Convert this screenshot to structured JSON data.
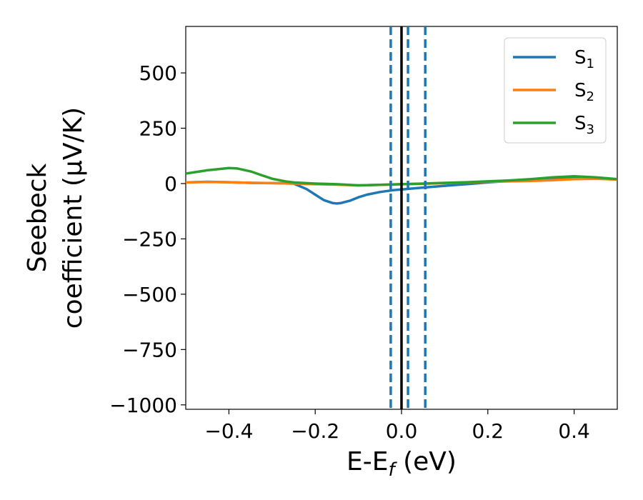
{
  "chart_data": {
    "type": "line",
    "xlabel_main": "E-E",
    "xlabel_sub": "f",
    "xlabel_unit": " (eV)",
    "ylabel_line1": "Seebeck",
    "ylabel_line2": "coefficient  (μV/K)",
    "xlim": [
      -0.5,
      0.5
    ],
    "ylim": [
      -1020,
      710
    ],
    "xticks": [
      -0.4,
      -0.2,
      0.0,
      0.2,
      0.4
    ],
    "xtick_labels": [
      "−0.4",
      "−0.2",
      "0.0",
      "0.2",
      "0.4"
    ],
    "yticks": [
      500,
      250,
      0,
      -250,
      -500,
      -750,
      -1000
    ],
    "ytick_labels": [
      "500",
      "250",
      "0",
      "−250",
      "−500",
      "−750",
      "−1000"
    ],
    "legend_position": "top-right",
    "series": [
      {
        "name": "S",
        "sub": "1",
        "color": "#1f77b4",
        "x": [
          -0.5,
          -0.45,
          -0.4,
          -0.35,
          -0.3,
          -0.25,
          -0.22,
          -0.2,
          -0.18,
          -0.16,
          -0.15,
          -0.14,
          -0.12,
          -0.1,
          -0.08,
          -0.05,
          -0.02,
          0.0,
          0.05,
          0.1,
          0.15,
          0.2,
          0.25,
          0.3,
          0.35,
          0.4,
          0.45,
          0.5
        ],
        "y": [
          5,
          8,
          6,
          3,
          2,
          0,
          -25,
          -50,
          -75,
          -88,
          -90,
          -88,
          -78,
          -62,
          -50,
          -38,
          -30,
          -27,
          -18,
          -10,
          -3,
          5,
          12,
          18,
          25,
          28,
          25,
          18
        ]
      },
      {
        "name": "S",
        "sub": "2",
        "color": "#ff7f0e",
        "x": [
          -0.5,
          -0.45,
          -0.4,
          -0.35,
          -0.3,
          -0.25,
          -0.2,
          -0.15,
          -0.1,
          -0.05,
          0.0,
          0.05,
          0.1,
          0.15,
          0.2,
          0.25,
          0.3,
          0.35,
          0.4,
          0.45,
          0.5
        ],
        "y": [
          5,
          7,
          6,
          3,
          2,
          0,
          -3,
          -5,
          -8,
          -6,
          -3,
          -1,
          2,
          5,
          8,
          10,
          12,
          15,
          20,
          22,
          18
        ]
      },
      {
        "name": "S",
        "sub": "3",
        "color": "#2ca02c",
        "x": [
          -0.5,
          -0.45,
          -0.4,
          -0.38,
          -0.35,
          -0.32,
          -0.3,
          -0.27,
          -0.25,
          -0.22,
          -0.2,
          -0.15,
          -0.1,
          -0.05,
          0.0,
          0.05,
          0.1,
          0.15,
          0.2,
          0.25,
          0.3,
          0.35,
          0.4,
          0.45,
          0.5
        ],
        "y": [
          45,
          60,
          70,
          68,
          55,
          35,
          22,
          10,
          5,
          2,
          0,
          -3,
          -8,
          -6,
          -3,
          0,
          3,
          6,
          10,
          14,
          20,
          28,
          33,
          28,
          20
        ]
      }
    ],
    "vlines": [
      {
        "x": -0.025,
        "style": "dashed",
        "color": "#1f77b4"
      },
      {
        "x": 0.0,
        "style": "solid",
        "color": "#000000"
      },
      {
        "x": 0.015,
        "style": "dashed",
        "color": "#1f77b4"
      },
      {
        "x": 0.055,
        "style": "dashed",
        "color": "#1f77b4"
      }
    ]
  }
}
